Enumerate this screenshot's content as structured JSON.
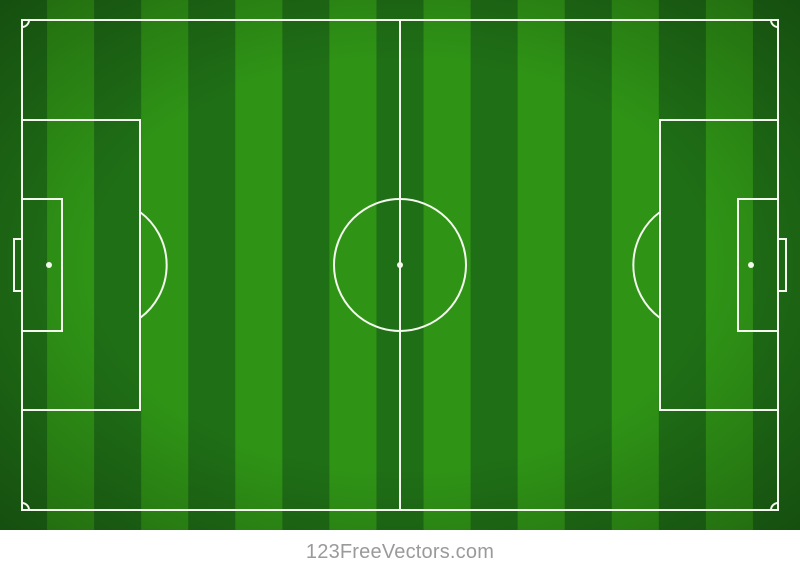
{
  "pitch": {
    "stripe_count": 17,
    "colors": {
      "stripe_dark": "#1f6f16",
      "stripe_light": "#2f9416",
      "line": "#f4f8ee"
    }
  },
  "footer": {
    "watermark": "123FreeVectors.com"
  }
}
